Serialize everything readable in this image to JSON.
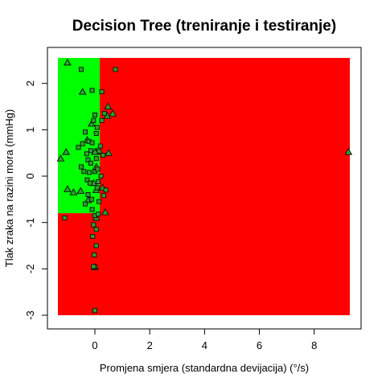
{
  "chart_data": {
    "type": "scatter",
    "title": "Decision Tree (treniranje i testiranje)",
    "xlabel": "Promjena smjera (standardna devijacija) (°/s)",
    "ylabel": "Tlak zraka na razini mora (mmHg)",
    "xlim": [
      -1.35,
      9.3
    ],
    "ylim": [
      -3.0,
      2.55
    ],
    "xticks": [
      0,
      2,
      4,
      6,
      8
    ],
    "yticks": [
      -3,
      -2,
      -1,
      0,
      1,
      2
    ],
    "grid": false,
    "legend": "none",
    "regions": [
      {
        "class": "red",
        "color": "#ff0000",
        "x": [
          -1.35,
          9.3
        ],
        "y": [
          -3.0,
          2.55
        ]
      },
      {
        "class": "green",
        "color": "#00ff00",
        "x": [
          -1.35,
          0.18
        ],
        "y": [
          -0.8,
          2.55
        ]
      }
    ],
    "series": [
      {
        "marker": "triangle",
        "color": "#2e9e2e",
        "points": [
          [
            -1.0,
            2.45
          ],
          [
            -1.25,
            0.38
          ],
          [
            -1.05,
            0.52
          ],
          [
            -1.0,
            -0.28
          ],
          [
            -0.78,
            -0.35
          ],
          [
            -0.45,
            1.82
          ],
          [
            -0.28,
            0.78
          ],
          [
            -0.12,
            1.13
          ],
          [
            0.45,
            1.3
          ],
          [
            0.65,
            1.35
          ],
          [
            0.05,
            0.53
          ],
          [
            0.48,
            1.5
          ],
          [
            0.5,
            0.5
          ],
          [
            0.15,
            0.55
          ],
          [
            0.0,
            0.52
          ],
          [
            -0.52,
            -0.32
          ],
          [
            -0.25,
            -0.52
          ],
          [
            -0.05,
            -0.15
          ],
          [
            0.38,
            -0.78
          ],
          [
            0.0,
            -1.96
          ],
          [
            0.05,
            -0.9
          ],
          [
            0.05,
            -0.3
          ],
          [
            0.28,
            -0.25
          ],
          [
            0.05,
            0.2
          ],
          [
            9.25,
            0.52
          ]
        ]
      },
      {
        "marker": "square",
        "color": "#2e9e2e",
        "points": [
          [
            -0.5,
            2.3
          ],
          [
            0.75,
            2.3
          ],
          [
            -0.1,
            1.85
          ],
          [
            0.25,
            1.82
          ],
          [
            0.35,
            1.35
          ],
          [
            0.0,
            1.32
          ],
          [
            -0.05,
            1.2
          ],
          [
            0.08,
            1.05
          ],
          [
            0.25,
            1.2
          ],
          [
            -0.35,
            0.95
          ],
          [
            0.05,
            0.92
          ],
          [
            -0.22,
            0.75
          ],
          [
            -0.1,
            0.72
          ],
          [
            -0.6,
            0.62
          ],
          [
            -0.45,
            0.7
          ],
          [
            0.2,
            0.65
          ],
          [
            -0.15,
            0.55
          ],
          [
            -0.3,
            0.48
          ],
          [
            0.05,
            0.38
          ],
          [
            -0.25,
            0.35
          ],
          [
            -0.15,
            0.28
          ],
          [
            -0.5,
            0.2
          ],
          [
            0.0,
            0.1
          ],
          [
            -0.2,
            0.08
          ],
          [
            0.22,
            0.0
          ],
          [
            0.12,
            -0.12
          ],
          [
            -0.28,
            -0.08
          ],
          [
            -0.18,
            -0.15
          ],
          [
            0.4,
            -0.3
          ],
          [
            0.32,
            -0.42
          ],
          [
            0.15,
            -0.55
          ],
          [
            -0.35,
            -0.6
          ],
          [
            -0.1,
            -0.72
          ],
          [
            0.0,
            -0.85
          ],
          [
            -1.1,
            -0.9
          ],
          [
            -0.05,
            -1.05
          ],
          [
            0.05,
            -1.15
          ],
          [
            -0.08,
            -1.3
          ],
          [
            0.05,
            -1.5
          ],
          [
            -0.02,
            -1.7
          ],
          [
            0.0,
            -1.96
          ],
          [
            -0.05,
            -1.95
          ],
          [
            0.0,
            -2.9
          ],
          [
            0.12,
            -0.82
          ],
          [
            -0.25,
            -0.4
          ],
          [
            0.1,
            0.15
          ],
          [
            0.3,
            0.45
          ],
          [
            -0.4,
            0.1
          ],
          [
            0.08,
            -0.25
          ],
          [
            -0.12,
            -0.5
          ]
        ]
      }
    ]
  }
}
